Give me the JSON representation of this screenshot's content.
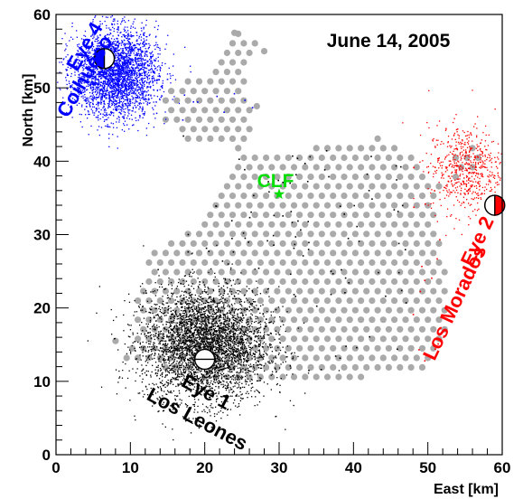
{
  "chart_data": {
    "type": "scatter",
    "title": "June 14, 2005",
    "xlabel": "East  [km]",
    "ylabel": "North  [km]",
    "xlim": [
      0,
      60
    ],
    "ylim": [
      0,
      60
    ],
    "xticks": [
      "0",
      "10",
      "20",
      "30",
      "40",
      "50",
      "60"
    ],
    "yticks": [
      "0",
      "10",
      "20",
      "30",
      "40",
      "50",
      "60"
    ],
    "grid": false,
    "colors": {
      "eye1": "#000000",
      "eye2": "#ff0000",
      "eye4": "#0000ff",
      "clf": "#00dd00",
      "tanks": "#aaaaaa"
    },
    "tank_array": {
      "spacing_km": 1.5,
      "outline": [
        [
          8,
          13.5
        ],
        [
          20,
          10.5
        ],
        [
          32,
          10.5
        ],
        [
          40,
          10.5
        ],
        [
          50,
          11
        ],
        [
          52,
          14
        ],
        [
          53,
          20
        ],
        [
          52,
          27
        ],
        [
          51,
          32
        ],
        [
          52,
          37
        ],
        [
          54,
          41
        ],
        [
          57,
          43
        ],
        [
          58,
          40
        ],
        [
          52,
          36
        ],
        [
          48,
          41
        ],
        [
          44,
          43.5
        ],
        [
          40,
          42
        ],
        [
          35,
          42
        ],
        [
          31,
          41
        ],
        [
          28,
          40.5
        ],
        [
          26,
          41
        ],
        [
          22,
          43
        ],
        [
          17,
          43
        ],
        [
          14,
          46
        ],
        [
          15,
          50
        ],
        [
          20,
          52
        ],
        [
          23,
          55
        ],
        [
          24,
          58
        ],
        [
          28,
          56
        ],
        [
          25,
          52
        ],
        [
          27,
          47
        ],
        [
          24,
          39
        ],
        [
          20,
          32
        ],
        [
          17,
          30
        ],
        [
          13,
          28
        ],
        [
          11,
          21
        ],
        [
          11,
          15
        ],
        [
          8,
          13.5
        ]
      ]
    },
    "eyes": [
      {
        "label": "Eye 1",
        "site": "Los Leones",
        "x": 20,
        "y": 13,
        "color": "#000000"
      },
      {
        "label": "Eye 2",
        "site": "Los Morados",
        "x": 59,
        "y": 34,
        "color": "#ff0000"
      },
      {
        "label": "Eye 4",
        "site": "Coihueco",
        "x": 6.5,
        "y": 54,
        "color": "#0000ff"
      }
    ],
    "clf": {
      "label": "CLF",
      "x": 30,
      "y": 35.5
    },
    "series": [
      {
        "color": "#000000",
        "center": [
          20,
          15
        ],
        "sigma": [
          4.2,
          3.8
        ],
        "count": 4000
      },
      {
        "color": "#0000ff",
        "center": [
          8,
          52
        ],
        "sigma": [
          2.8,
          3.0
        ],
        "count": 3000
      },
      {
        "color": "#ff0000",
        "center": [
          55,
          39
        ],
        "sigma": [
          2.5,
          3.0
        ],
        "count": 600
      }
    ]
  }
}
